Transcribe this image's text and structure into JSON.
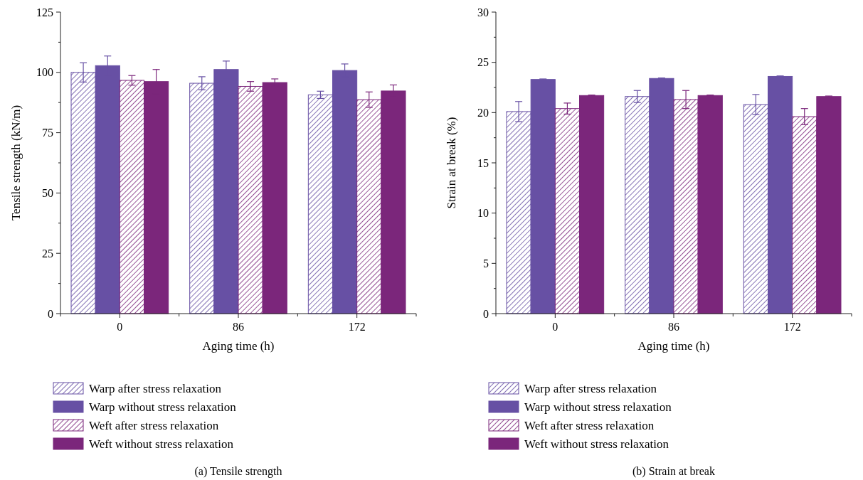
{
  "chart_data": [
    {
      "type": "bar",
      "title": "(a)  Tensile strength",
      "xlabel": "Aging time (h)",
      "ylabel": "Tensile strength (kN/m)",
      "categories": [
        "0",
        "86",
        "172"
      ],
      "ylim": [
        0,
        125
      ],
      "yticks": [
        0,
        25,
        50,
        75,
        100,
        125
      ],
      "legend": "bottom",
      "series": [
        {
          "name": "Warp after stress relaxation",
          "color": "#6750a4",
          "values": [
            100,
            95.5,
            90.7
          ],
          "errors": [
            4,
            2.7,
            1.5
          ]
        },
        {
          "name": "Warp without stress relaxation",
          "color": "#6750a4",
          "values": [
            102.8,
            101.2,
            100.8
          ],
          "errors": [
            4,
            3.5,
            2.7
          ]
        },
        {
          "name": "Weft after stress relaxation",
          "color": "#7b267b",
          "values": [
            96.7,
            94.2,
            88.7
          ],
          "errors": [
            2,
            2,
            3.2
          ]
        },
        {
          "name": "Weft without stress relaxation",
          "color": "#7b267b",
          "values": [
            96.2,
            95.8,
            92.3
          ],
          "errors": [
            5,
            1.5,
            2.5
          ]
        }
      ]
    },
    {
      "type": "bar",
      "title": "(b)  Strain at break",
      "xlabel": "Aging time (h)",
      "ylabel": "Strain at break (%)",
      "categories": [
        "0",
        "86",
        "172"
      ],
      "ylim": [
        0,
        30
      ],
      "yticks": [
        0,
        5,
        10,
        15,
        20,
        25,
        30
      ],
      "legend": "bottom",
      "series": [
        {
          "name": "Warp after stress relaxation",
          "color": "#6750a4",
          "values": [
            20.1,
            21.6,
            20.8
          ],
          "errors": [
            1,
            0.6,
            1
          ]
        },
        {
          "name": "Warp without stress relaxation",
          "color": "#6750a4",
          "values": [
            23.3,
            23.4,
            23.6
          ],
          "errors": [
            0.05,
            0.05,
            0.05
          ]
        },
        {
          "name": "Weft after stress relaxation",
          "color": "#7b267b",
          "values": [
            20.4,
            21.3,
            19.6
          ],
          "errors": [
            0.55,
            0.9,
            0.8
          ]
        },
        {
          "name": "Weft without stress relaxation",
          "color": "#7b267b",
          "values": [
            21.7,
            21.7,
            21.6
          ],
          "errors": [
            0.05,
            0.05,
            0.05
          ]
        }
      ]
    }
  ]
}
